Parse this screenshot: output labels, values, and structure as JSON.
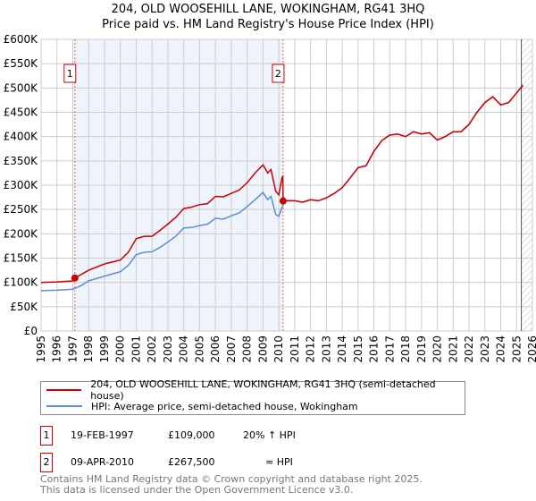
{
  "chart_data": {
    "type": "line",
    "title": "204, OLD WOOSEHILL LANE, WOKINGHAM, RG41 3HQ",
    "subtitle": "Price paid vs. HM Land Registry's House Price Index (HPI)",
    "xlim": [
      1995,
      2026
    ],
    "ylim": [
      0,
      600000
    ],
    "yticks": [
      {
        "v": 0,
        "l": "£0"
      },
      {
        "v": 50000,
        "l": "£50K"
      },
      {
        "v": 100000,
        "l": "£100K"
      },
      {
        "v": 150000,
        "l": "£150K"
      },
      {
        "v": 200000,
        "l": "£200K"
      },
      {
        "v": 250000,
        "l": "£250K"
      },
      {
        "v": 300000,
        "l": "£300K"
      },
      {
        "v": 350000,
        "l": "£350K"
      },
      {
        "v": 400000,
        "l": "£400K"
      },
      {
        "v": 450000,
        "l": "£450K"
      },
      {
        "v": 500000,
        "l": "£500K"
      },
      {
        "v": 550000,
        "l": "£550K"
      },
      {
        "v": 600000,
        "l": "£600K"
      }
    ],
    "xticks": [
      "1995",
      "1996",
      "1997",
      "1998",
      "1999",
      "2000",
      "2001",
      "2002",
      "2003",
      "2004",
      "2005",
      "2006",
      "2007",
      "2008",
      "2009",
      "2010",
      "2011",
      "2012",
      "2013",
      "2014",
      "2015",
      "2016",
      "2017",
      "2018",
      "2019",
      "2020",
      "2021",
      "2022",
      "2023",
      "2024",
      "2025",
      "2026"
    ],
    "grid": true,
    "shaded_range": [
      1997.13,
      2010.27
    ],
    "hatched_from": 2025.3,
    "series": [
      {
        "name": "204, OLD WOOSEHILL LANE, WOKINGHAM, RG41 3HQ (semi-detached house)",
        "color": "#cc0000",
        "x": [
          1995,
          1996,
          1997,
          1997.13,
          1998,
          1999,
          2000,
          2000.5,
          2001,
          2001.5,
          2002,
          2002.5,
          2003,
          2003.5,
          2004,
          2004.5,
          2005,
          2005.5,
          2006,
          2006.5,
          2007,
          2007.5,
          2008,
          2008.5,
          2009,
          2009.3,
          2009.5,
          2009.8,
          2010,
          2010.2,
          2010.25,
          2010.27,
          2010.5,
          2011,
          2011.5,
          2012,
          2012.5,
          2013,
          2013.5,
          2014,
          2014.5,
          2015,
          2015.5,
          2016,
          2016.5,
          2017,
          2017.5,
          2018,
          2018.5,
          2019,
          2019.5,
          2020,
          2020.5,
          2021,
          2021.5,
          2022,
          2022.5,
          2023,
          2023.5,
          2024,
          2024.5,
          2025,
          2025.4
        ],
        "y": [
          100000,
          101000,
          103000,
          109000,
          125000,
          138000,
          146000,
          162000,
          190000,
          195000,
          195000,
          207000,
          220000,
          234000,
          252000,
          255000,
          260000,
          262000,
          277000,
          276000,
          283000,
          290000,
          305000,
          325000,
          342000,
          325000,
          332000,
          288000,
          280000,
          316000,
          318000,
          267500,
          268000,
          268000,
          265000,
          270000,
          268000,
          274000,
          283000,
          295000,
          315000,
          336000,
          340000,
          370000,
          392000,
          403000,
          405000,
          400000,
          410000,
          405000,
          408000,
          393000,
          400000,
          410000,
          410000,
          425000,
          450000,
          470000,
          482000,
          465000,
          470000,
          490000,
          505000
        ]
      },
      {
        "name": "HPI: Average price, semi-detached house, Wokingham",
        "color": "#5b8fd1",
        "x": [
          1995,
          1996,
          1997,
          1997.5,
          1998,
          1999,
          2000,
          2000.5,
          2001,
          2001.5,
          2002,
          2002.5,
          2003,
          2003.5,
          2004,
          2004.5,
          2005,
          2005.5,
          2006,
          2006.5,
          2007,
          2007.5,
          2008,
          2008.5,
          2009,
          2009.3,
          2009.5,
          2009.8,
          2010,
          2010.27,
          2010.5,
          2011,
          2011.5,
          2012,
          2012.5,
          2013,
          2013.5,
          2014,
          2014.5,
          2015,
          2015.5,
          2016,
          2016.5,
          2017,
          2017.5,
          2018,
          2018.5,
          2019,
          2019.5,
          2020,
          2020.5,
          2021,
          2021.5,
          2022,
          2022.5,
          2023,
          2023.5,
          2024,
          2024.5,
          2025,
          2025.4
        ],
        "y": [
          83000,
          84000,
          86000,
          93000,
          103000,
          113000,
          122000,
          135000,
          157000,
          162000,
          163000,
          172000,
          183000,
          195000,
          212000,
          213000,
          217000,
          220000,
          232000,
          230000,
          237000,
          243000,
          256000,
          270000,
          285000,
          270000,
          277000,
          240000,
          236000,
          260000,
          268000,
          268000,
          265000,
          270000,
          268000,
          274000,
          283000,
          295000,
          315000,
          336000,
          340000,
          370000,
          392000,
          403000,
          405000,
          400000,
          410000,
          405000,
          408000,
          393000,
          400000,
          410000,
          410000,
          425000,
          450000,
          470000,
          482000,
          465000,
          470000,
          490000,
          507000
        ]
      }
    ],
    "annotations": [
      {
        "label": "1",
        "x": 1997.13,
        "y": 109000
      },
      {
        "label": "2",
        "x": 2010.27,
        "y": 267500
      }
    ]
  },
  "legend": {
    "items": [
      "204, OLD WOOSEHILL LANE, WOKINGHAM, RG41 3HQ (semi-detached house)",
      "HPI: Average price, semi-detached house, Wokingham"
    ]
  },
  "transactions": [
    {
      "num": "1",
      "date": "19-FEB-1997",
      "price": "£109,000",
      "hpi": "20% ↑ HPI"
    },
    {
      "num": "2",
      "date": "09-APR-2010",
      "price": "£267,500",
      "hpi": "≈ HPI"
    }
  ],
  "footer": {
    "line1": "Contains HM Land Registry data © Crown copyright and database right 2025.",
    "line2": "This data is licensed under the Open Government Licence v3.0."
  },
  "colors": {
    "red": "#cc0000",
    "blue": "#5b8fd1",
    "shade": "#eef3fc"
  }
}
